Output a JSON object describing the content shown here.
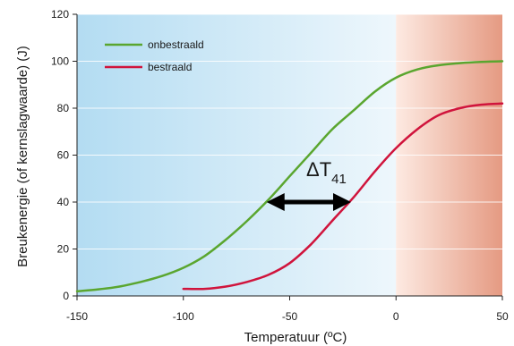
{
  "chart_data": {
    "type": "line",
    "title": "",
    "xlabel": "Temperatuur (ºC)",
    "ylabel": "Breukenergie (of kernslagwaarde) (J)",
    "xlim": [
      -150,
      50
    ],
    "ylim": [
      0,
      120
    ],
    "xticks": [
      -150,
      -100,
      -50,
      0,
      50
    ],
    "yticks": [
      0,
      20,
      40,
      60,
      80,
      100,
      120
    ],
    "grid": "horizontal",
    "legend": "top-left",
    "series": [
      {
        "name": "onbestraald",
        "color": "#5aa62f",
        "x": [
          -150,
          -140,
          -130,
          -120,
          -110,
          -100,
          -90,
          -80,
          -70,
          -60,
          -50,
          -40,
          -30,
          -20,
          -10,
          0,
          10,
          20,
          30,
          40,
          50
        ],
        "y": [
          2,
          2.8,
          4,
          6,
          8.5,
          12,
          17,
          24,
          32,
          41,
          51,
          61,
          71,
          79,
          87,
          93,
          96.5,
          98.3,
          99.2,
          99.7,
          100
        ]
      },
      {
        "name": "bestraald",
        "color": "#d0143c",
        "x": [
          -100,
          -90,
          -80,
          -70,
          -60,
          -50,
          -40,
          -30,
          -20,
          -10,
          0,
          10,
          20,
          30,
          40,
          50
        ],
        "y": [
          3,
          3,
          4,
          6,
          9,
          14,
          22,
          32,
          42,
          53,
          63,
          71,
          77,
          80,
          81.5,
          82
        ]
      }
    ],
    "annotation": {
      "label": "ΔT",
      "subscript": "41",
      "arrow": {
        "from_x": -60,
        "to_x": -22,
        "y": 40
      }
    },
    "background": {
      "left_color": "#b3dcf2",
      "right_color": "#e59a82",
      "boundary_x": 0
    }
  }
}
